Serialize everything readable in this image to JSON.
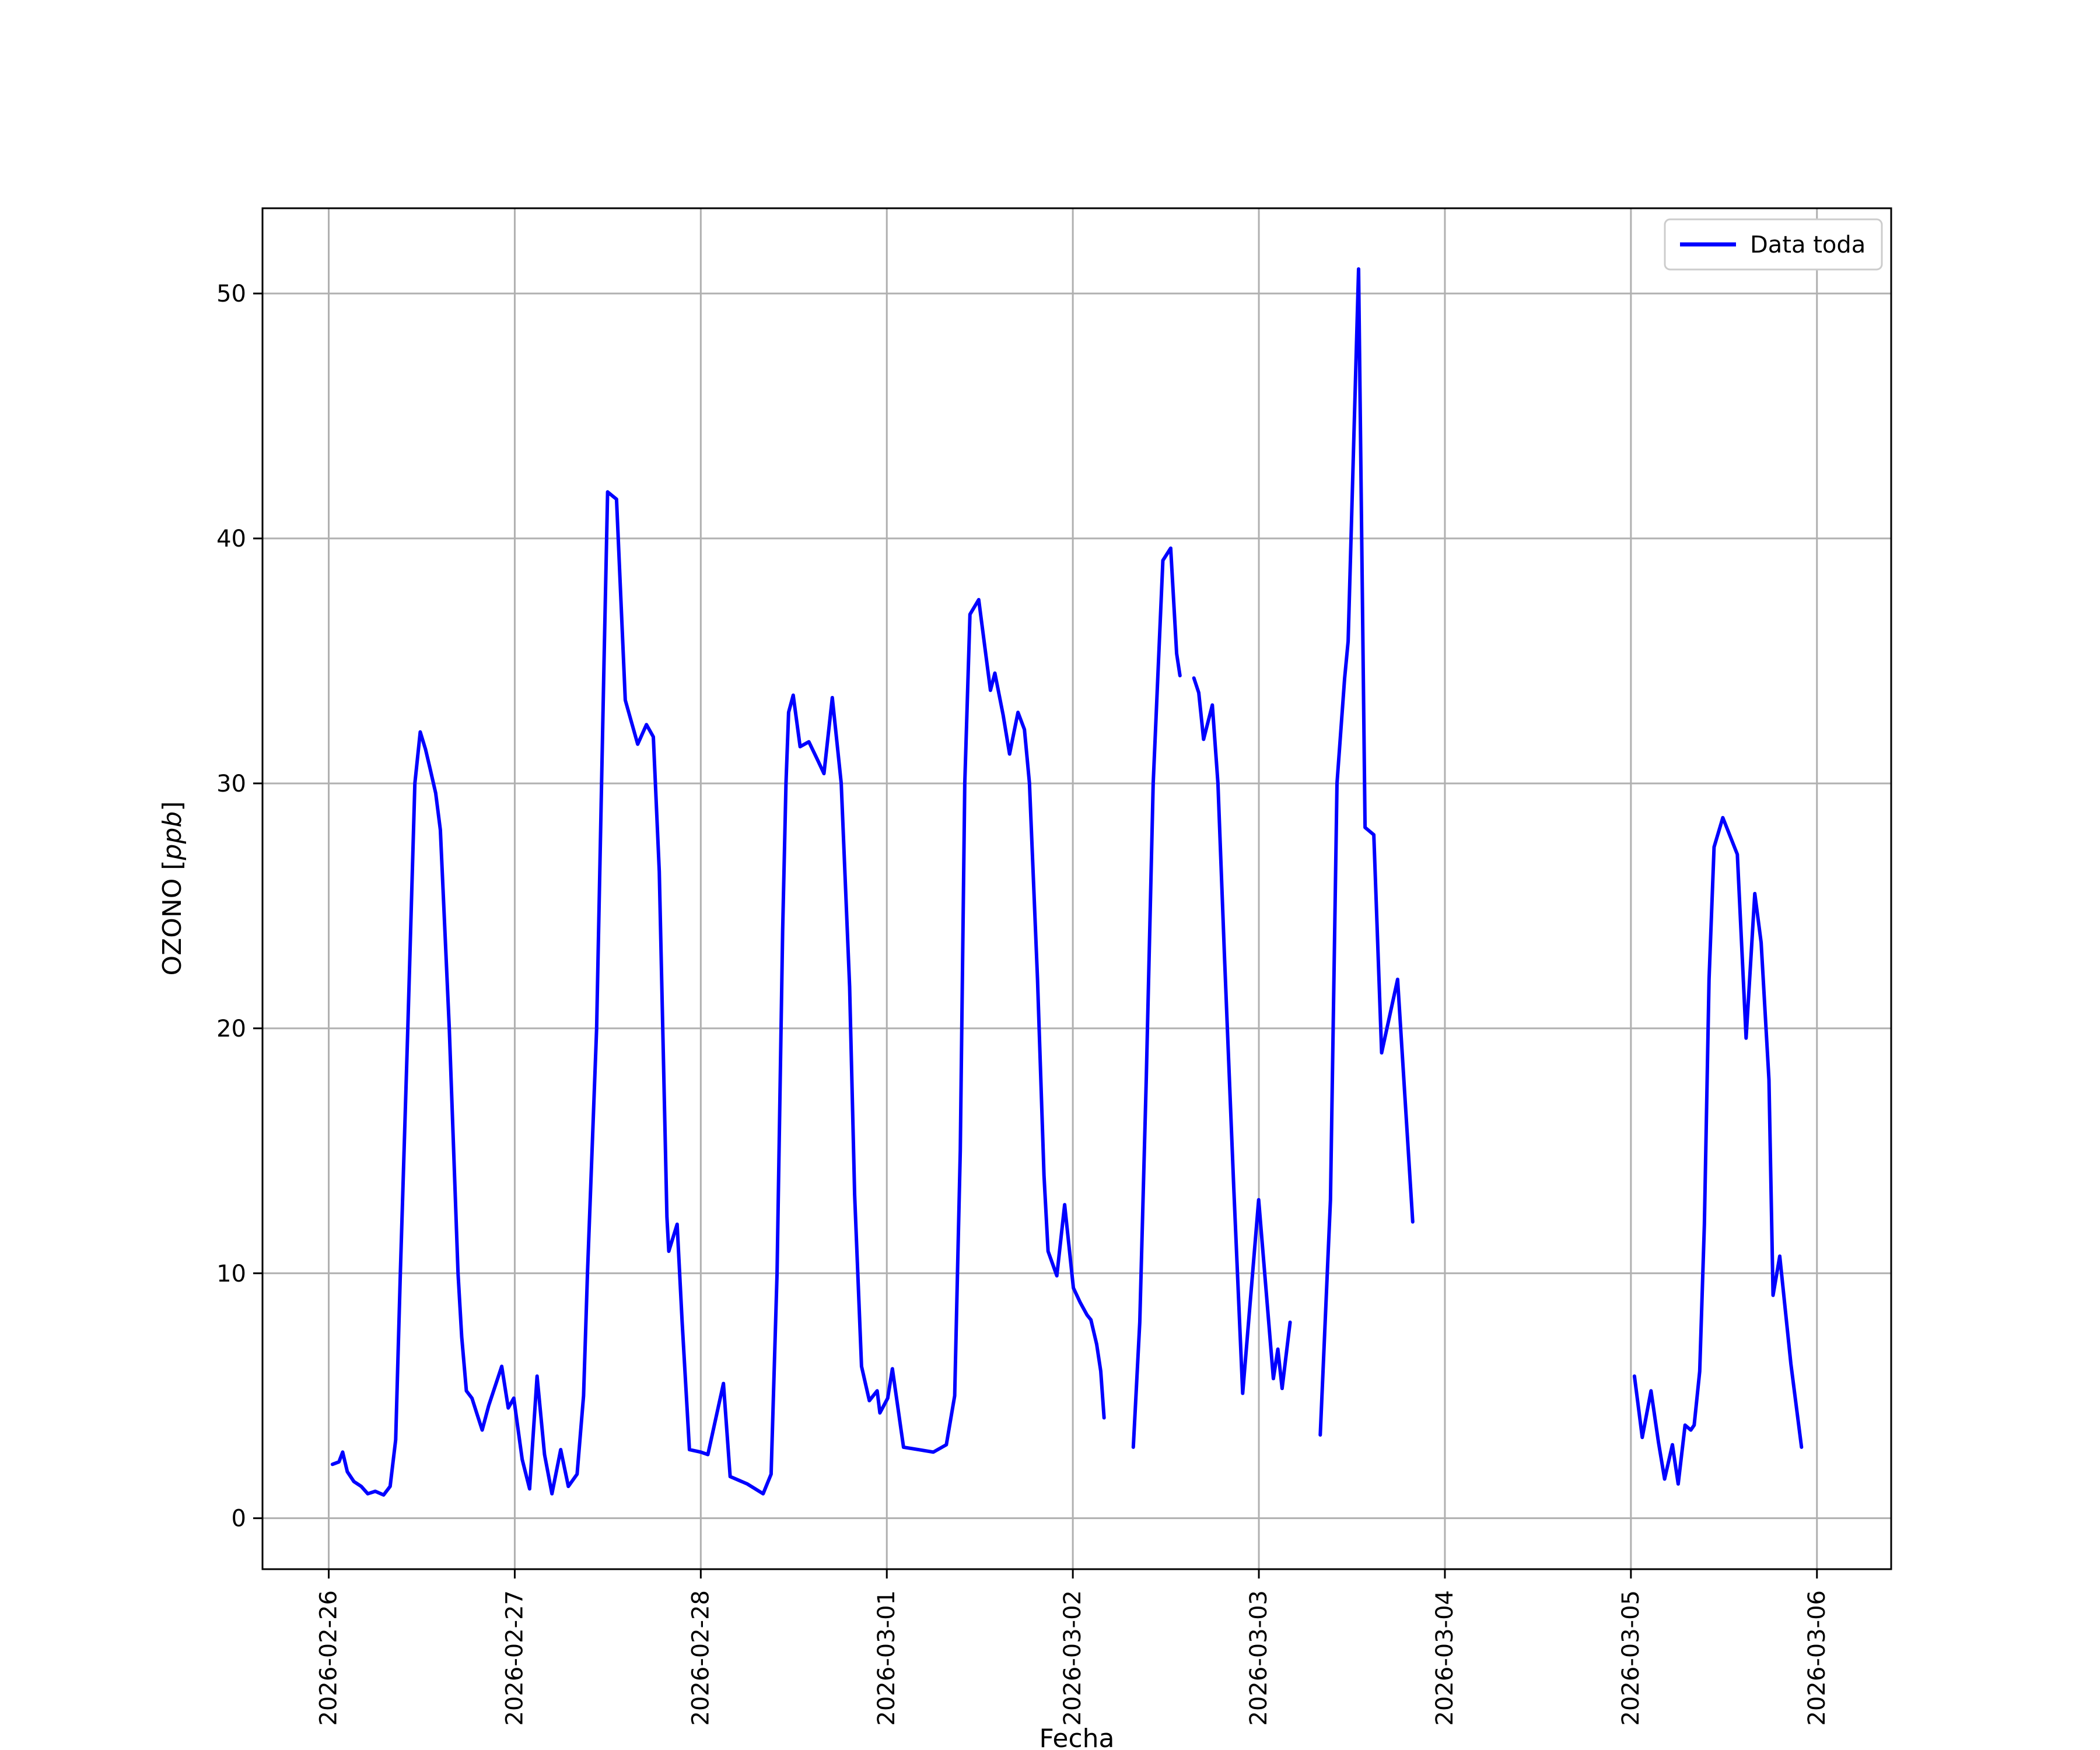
{
  "chart_data": {
    "type": "line",
    "title": "",
    "xlabel": "Fecha",
    "ylabel": "OZONO [ppb]",
    "ylabel_parts": {
      "pre": "OZONO [",
      "italic": "ppb",
      "post": "]"
    },
    "grid": true,
    "background_color": "#ffffff",
    "grid_color": "#b0b0b0",
    "spine_color": "#000000",
    "legend": {
      "label": "Data toda",
      "position": "upper right",
      "border_color": "#cccccc"
    },
    "x_unit": "days since 2026-02-26 00:00",
    "x_tick_days": [
      0,
      1,
      2,
      3,
      4,
      5,
      6,
      7,
      8
    ],
    "x_tick_labels": [
      "2026-02-26",
      "2026-02-27",
      "2026-02-28",
      "2026-03-01",
      "2026-03-02",
      "2026-03-03",
      "2026-03-04",
      "2026-03-05",
      "2026-03-06"
    ],
    "y_ticks": [
      0,
      10,
      20,
      30,
      40,
      50
    ],
    "xlim_days": [
      -0.356,
      8.399
    ],
    "ylim": [
      -2.08,
      53.48
    ],
    "series": [
      {
        "name": "Data toda",
        "color": "#0000ff",
        "linewidth": 6,
        "segments": [
          [
            [
              0.02,
              2.2
            ],
            [
              0.055,
              2.3
            ],
            [
              0.075,
              2.7
            ],
            [
              0.1,
              1.9
            ],
            [
              0.135,
              1.5
            ],
            [
              0.175,
              1.3
            ],
            [
              0.21,
              1.0
            ],
            [
              0.25,
              1.1
            ],
            [
              0.295,
              0.95
            ],
            [
              0.33,
              1.3
            ],
            [
              0.36,
              3.2
            ],
            [
              0.385,
              10
            ],
            [
              0.425,
              20
            ],
            [
              0.463,
              30
            ],
            [
              0.492,
              32.1
            ],
            [
              0.52,
              31.4
            ],
            [
              0.545,
              30.6
            ],
            [
              0.575,
              29.6
            ],
            [
              0.6,
              28.1
            ],
            [
              0.648,
              20
            ],
            [
              0.695,
              10
            ],
            [
              0.715,
              7.4
            ],
            [
              0.74,
              5.2
            ],
            [
              0.77,
              4.9
            ],
            [
              0.795,
              4.3
            ],
            [
              0.825,
              3.6
            ],
            [
              0.86,
              4.6
            ],
            [
              0.93,
              6.2
            ],
            [
              0.965,
              4.5
            ],
            [
              0.995,
              4.9
            ],
            [
              1.04,
              2.4
            ],
            [
              1.08,
              1.2
            ],
            [
              1.12,
              5.8
            ],
            [
              1.16,
              2.6
            ],
            [
              1.2,
              1.0
            ],
            [
              1.247,
              2.8
            ],
            [
              1.288,
              1.3
            ],
            [
              1.335,
              1.8
            ],
            [
              1.37,
              5.0
            ],
            [
              1.391,
              10
            ],
            [
              1.44,
              20
            ],
            [
              1.48,
              35
            ],
            [
              1.499,
              41.9
            ],
            [
              1.547,
              41.6
            ],
            [
              1.594,
              33.4
            ],
            [
              1.661,
              31.6
            ],
            [
              1.708,
              32.4
            ],
            [
              1.745,
              31.9
            ],
            [
              1.777,
              26.4
            ],
            [
              1.818,
              12.3
            ],
            [
              1.828,
              10.9
            ],
            [
              1.873,
              12.0
            ],
            [
              1.9,
              8.0
            ],
            [
              1.939,
              2.8
            ],
            [
              2.0,
              2.7
            ],
            [
              2.038,
              2.6
            ],
            [
              2.122,
              5.5
            ],
            [
              2.158,
              1.7
            ],
            [
              2.25,
              1.4
            ],
            [
              2.335,
              1.0
            ],
            [
              2.378,
              1.8
            ],
            [
              2.41,
              10
            ],
            [
              2.44,
              24
            ],
            [
              2.458,
              30
            ],
            [
              2.472,
              32.9
            ],
            [
              2.497,
              33.6
            ],
            [
              2.534,
              31.5
            ],
            [
              2.581,
              31.7
            ],
            [
              2.625,
              31.0
            ],
            [
              2.662,
              30.4
            ],
            [
              2.707,
              33.5
            ],
            [
              2.755,
              30
            ],
            [
              2.8,
              21.7
            ],
            [
              2.827,
              13.2
            ],
            [
              2.864,
              6.2
            ],
            [
              2.906,
              4.8
            ],
            [
              2.948,
              5.2
            ],
            [
              2.963,
              4.3
            ],
            [
              3.005,
              4.9
            ],
            [
              3.03,
              6.1
            ],
            [
              3.09,
              2.9
            ],
            [
              3.17,
              2.8
            ],
            [
              3.25,
              2.7
            ],
            [
              3.32,
              3.0
            ],
            [
              3.365,
              5.0
            ],
            [
              3.395,
              15
            ],
            [
              3.419,
              30
            ],
            [
              3.447,
              36.9
            ],
            [
              3.494,
              37.5
            ],
            [
              3.557,
              33.8
            ],
            [
              3.581,
              34.5
            ],
            [
              3.625,
              32.8
            ],
            [
              3.66,
              31.2
            ],
            [
              3.705,
              32.9
            ],
            [
              3.74,
              32.2
            ],
            [
              3.767,
              30
            ],
            [
              3.81,
              22
            ],
            [
              3.845,
              14
            ],
            [
              3.867,
              10.9
            ],
            [
              3.914,
              9.9
            ],
            [
              3.956,
              12.8
            ],
            [
              4.003,
              9.4
            ],
            [
              4.04,
              8.8
            ],
            [
              4.076,
              8.3
            ],
            [
              4.097,
              8.1
            ],
            [
              4.128,
              7.1
            ],
            [
              4.15,
              6.0
            ],
            [
              4.168,
              4.1
            ]
          ],
          [
            [
              4.325,
              2.9
            ],
            [
              4.36,
              8.0
            ],
            [
              4.395,
              18
            ],
            [
              4.432,
              30
            ],
            [
              4.484,
              39.1
            ],
            [
              4.526,
              39.6
            ],
            [
              4.558,
              35.3
            ],
            [
              4.576,
              34.4
            ]
          ],
          [
            [
              4.651,
              34.3
            ],
            [
              4.677,
              33.7
            ],
            [
              4.703,
              31.8
            ],
            [
              4.75,
              33.2
            ],
            [
              4.78,
              30
            ],
            [
              4.815,
              23
            ],
            [
              4.865,
              13.5
            ],
            [
              4.913,
              5.1
            ],
            [
              4.999,
              13.0
            ],
            [
              5.078,
              5.7
            ],
            [
              5.102,
              6.9
            ],
            [
              5.125,
              5.3
            ],
            [
              5.168,
              8.0
            ]
          ],
          [
            [
              5.33,
              3.4
            ],
            [
              5.385,
              13
            ],
            [
              5.42,
              30
            ],
            [
              5.461,
              34.3
            ],
            [
              5.48,
              35.8
            ],
            [
              5.536,
              51.0
            ],
            [
              5.571,
              28.2
            ],
            [
              5.618,
              27.9
            ],
            [
              5.66,
              19.0
            ],
            [
              5.746,
              22.0
            ],
            [
              5.827,
              12.1
            ]
          ],
          [
            [
              7.019,
              5.8
            ],
            [
              7.061,
              3.3
            ],
            [
              7.108,
              5.2
            ],
            [
              7.148,
              3.1
            ],
            [
              7.181,
              1.6
            ],
            [
              7.223,
              3.0
            ],
            [
              7.254,
              1.4
            ],
            [
              7.291,
              3.8
            ],
            [
              7.322,
              3.6
            ],
            [
              7.34,
              3.8
            ],
            [
              7.37,
              6.0
            ],
            [
              7.395,
              12
            ],
            [
              7.42,
              22
            ],
            [
              7.447,
              27.4
            ],
            [
              7.494,
              28.6
            ],
            [
              7.52,
              28.1
            ],
            [
              7.572,
              27.1
            ],
            [
              7.619,
              19.6
            ],
            [
              7.666,
              25.5
            ],
            [
              7.7,
              23.5
            ],
            [
              7.742,
              17.9
            ],
            [
              7.764,
              9.1
            ],
            [
              7.8,
              10.7
            ],
            [
              7.86,
              6.3
            ],
            [
              7.917,
              2.9
            ]
          ]
        ]
      }
    ]
  }
}
